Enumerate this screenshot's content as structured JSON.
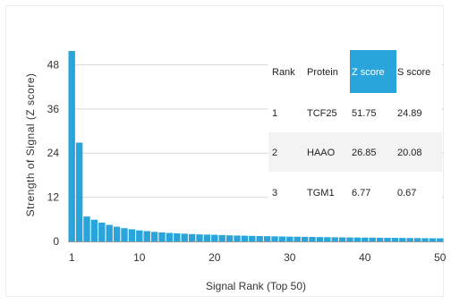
{
  "chart_data": {
    "type": "bar",
    "title": "",
    "xlabel": "Signal Rank (Top 50)",
    "ylabel": "Strength of Signal (Z score)",
    "x": [
      1,
      2,
      3,
      4,
      5,
      6,
      7,
      8,
      9,
      10,
      11,
      12,
      13,
      14,
      15,
      16,
      17,
      18,
      19,
      20,
      21,
      22,
      23,
      24,
      25,
      26,
      27,
      28,
      29,
      30,
      31,
      32,
      33,
      34,
      35,
      36,
      37,
      38,
      39,
      40,
      41,
      42,
      43,
      44,
      45,
      46,
      47,
      48,
      49,
      50
    ],
    "values": [
      51.75,
      26.85,
      6.77,
      5.9,
      5.1,
      4.5,
      4.0,
      3.6,
      3.3,
      3.0,
      2.8,
      2.6,
      2.45,
      2.3,
      2.2,
      2.1,
      2.0,
      1.9,
      1.85,
      1.8,
      1.72,
      1.66,
      1.6,
      1.55,
      1.5,
      1.46,
      1.42,
      1.38,
      1.34,
      1.3,
      1.27,
      1.24,
      1.21,
      1.18,
      1.15,
      1.12,
      1.1,
      1.08,
      1.06,
      1.04,
      1.02,
      1.0,
      0.98,
      0.96,
      0.94,
      0.92,
      0.9,
      0.88,
      0.86,
      0.84
    ],
    "xticks": [
      1,
      10,
      20,
      30,
      40,
      50
    ],
    "yticks": [
      0,
      12,
      24,
      36,
      48
    ],
    "xlim": [
      0.5,
      50.5
    ],
    "ylim": [
      0,
      52
    ],
    "grid": "horizontal",
    "bar_color": "#2aa5dc",
    "table": {
      "headers": [
        "Rank",
        "Protein",
        "Z score",
        "S score"
      ],
      "highlight_header": "Z score",
      "highlight_color": "#2aa5dc",
      "rows": [
        [
          "1",
          "TCF25",
          "51.75",
          "24.89"
        ],
        [
          "2",
          "HAAO",
          "26.85",
          "20.08"
        ],
        [
          "3",
          "TGM1",
          "6.77",
          "0.67"
        ]
      ]
    }
  }
}
